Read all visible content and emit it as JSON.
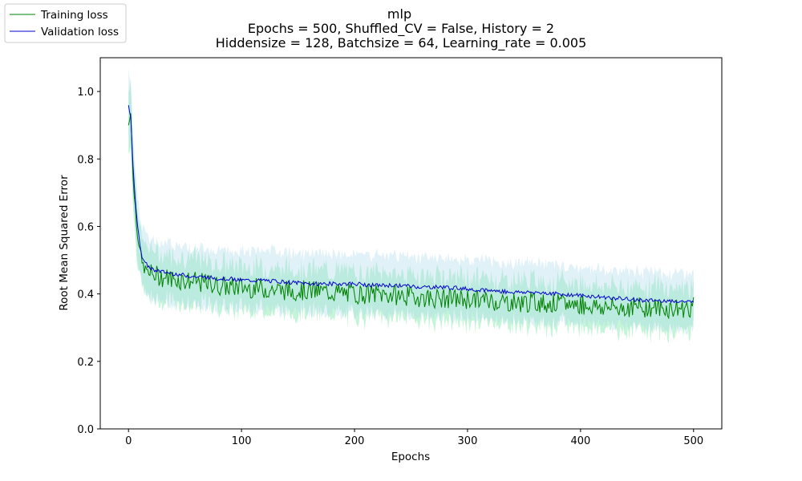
{
  "chart_data": {
    "type": "line",
    "title": "mlp",
    "subtitle_lines": [
      "Epochs = 500, Shuffled_CV = False, History = 2",
      "Hiddensize = 128, Batchsize = 64, Learning_rate = 0.005"
    ],
    "xlabel": "Epochs",
    "ylabel": "Root Mean Squared Error",
    "xlim": [
      -25,
      525
    ],
    "ylim": [
      0,
      1.1
    ],
    "x_ticks": [
      0,
      100,
      200,
      300,
      400,
      500
    ],
    "y_ticks": [
      0.0,
      0.2,
      0.4,
      0.6,
      0.8,
      1.0
    ],
    "x_tick_labels": [
      "0",
      "100",
      "200",
      "300",
      "400",
      "500"
    ],
    "y_tick_labels": [
      "0.0",
      "0.2",
      "0.4",
      "0.6",
      "0.8",
      "1.0"
    ],
    "grid": false,
    "legend_position": "top-left (outside plot)",
    "series": [
      {
        "name": "Training loss",
        "color": "#008000",
        "band_color": "#7ee8a8",
        "x": [
          0,
          2,
          4,
          6,
          8,
          10,
          12,
          15,
          18,
          20,
          25,
          30,
          40,
          50,
          60,
          70,
          80,
          90,
          100,
          120,
          140,
          160,
          180,
          200,
          220,
          240,
          260,
          280,
          300,
          320,
          340,
          360,
          380,
          400,
          420,
          440,
          460,
          480,
          500
        ],
        "values": [
          0.9,
          0.95,
          0.74,
          0.66,
          0.58,
          0.53,
          0.49,
          0.47,
          0.46,
          0.46,
          0.455,
          0.45,
          0.445,
          0.44,
          0.435,
          0.43,
          0.425,
          0.42,
          0.42,
          0.415,
          0.41,
          0.41,
          0.405,
          0.4,
          0.4,
          0.395,
          0.39,
          0.385,
          0.385,
          0.38,
          0.375,
          0.375,
          0.37,
          0.37,
          0.36,
          0.36,
          0.36,
          0.355,
          0.36
        ],
        "band_halfwidth": [
          0.08,
          0.08,
          0.07,
          0.07,
          0.06,
          0.06,
          0.06,
          0.06,
          0.06,
          0.06,
          0.055,
          0.055,
          0.055,
          0.055,
          0.055,
          0.05,
          0.05,
          0.05,
          0.05,
          0.05,
          0.05,
          0.05,
          0.05,
          0.05,
          0.05,
          0.05,
          0.05,
          0.05,
          0.05,
          0.05,
          0.05,
          0.05,
          0.05,
          0.05,
          0.05,
          0.05,
          0.05,
          0.05,
          0.05
        ]
      },
      {
        "name": "Validation loss",
        "color": "#0000cd",
        "band_color": "#a8d8ea",
        "x": [
          0,
          2,
          4,
          6,
          8,
          10,
          12,
          15,
          18,
          20,
          25,
          30,
          40,
          50,
          60,
          70,
          80,
          90,
          100,
          120,
          140,
          160,
          180,
          200,
          220,
          240,
          260,
          280,
          300,
          320,
          340,
          360,
          380,
          400,
          420,
          440,
          460,
          480,
          500
        ],
        "values": [
          0.96,
          0.92,
          0.78,
          0.68,
          0.6,
          0.55,
          0.51,
          0.49,
          0.48,
          0.475,
          0.47,
          0.465,
          0.46,
          0.455,
          0.45,
          0.45,
          0.445,
          0.445,
          0.44,
          0.44,
          0.435,
          0.43,
          0.43,
          0.43,
          0.425,
          0.425,
          0.42,
          0.42,
          0.415,
          0.41,
          0.405,
          0.405,
          0.4,
          0.395,
          0.39,
          0.385,
          0.38,
          0.38,
          0.375
        ],
        "band_halfwidth": [
          0.08,
          0.08,
          0.08,
          0.08,
          0.07,
          0.07,
          0.07,
          0.07,
          0.07,
          0.07,
          0.07,
          0.07,
          0.07,
          0.07,
          0.07,
          0.07,
          0.07,
          0.07,
          0.07,
          0.07,
          0.07,
          0.07,
          0.07,
          0.07,
          0.07,
          0.07,
          0.07,
          0.07,
          0.07,
          0.07,
          0.07,
          0.07,
          0.065,
          0.065,
          0.065,
          0.065,
          0.065,
          0.065,
          0.065
        ]
      }
    ]
  }
}
